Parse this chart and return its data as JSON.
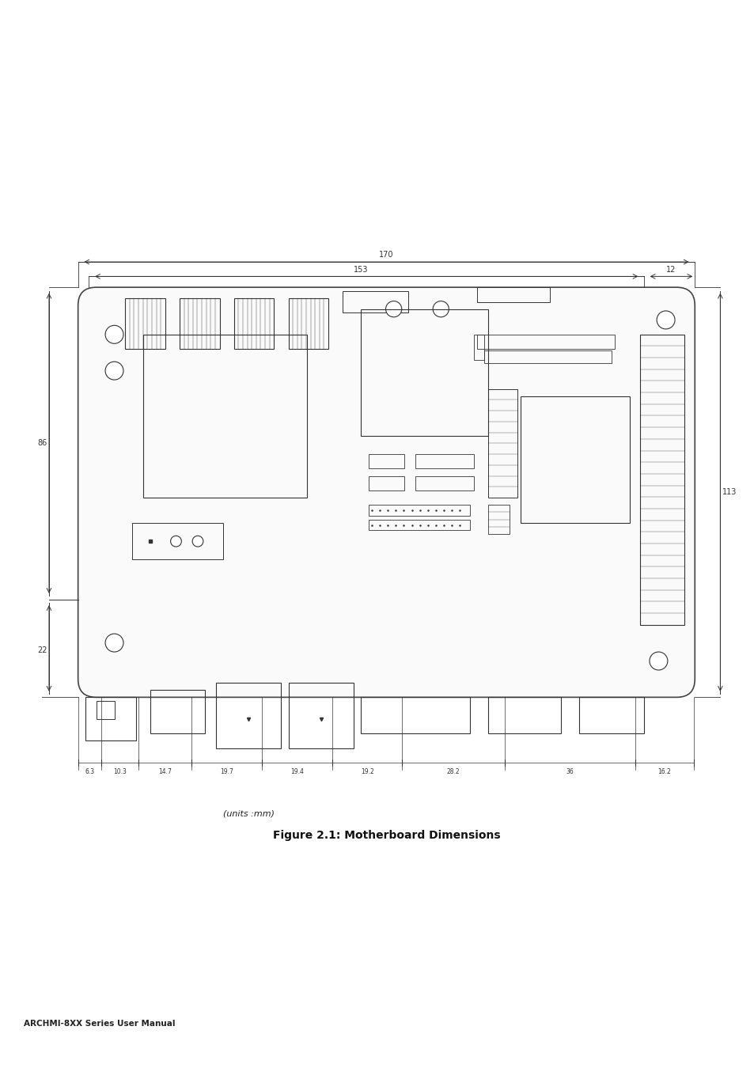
{
  "fig_width": 9.54,
  "fig_height": 13.5,
  "bg_color": "#ffffff",
  "line_color": "#333333",
  "board_color": "#ffffff",
  "board_edge_color": "#444444",
  "title": "Figure 2.1: Motherboard Dimensions",
  "subtitle": "(units :mm)",
  "footer": "ARCHMI-8XX Series User Manual",
  "dim_170": "170",
  "dim_153": "153",
  "dim_12": "12",
  "dim_86": "86",
  "dim_113": "113",
  "dim_22": "22",
  "dim_bottom": [
    "6.3",
    "10.3",
    "14.7",
    "19.7",
    "19.4",
    "19.2",
    "28.2",
    "36",
    "16.2"
  ]
}
